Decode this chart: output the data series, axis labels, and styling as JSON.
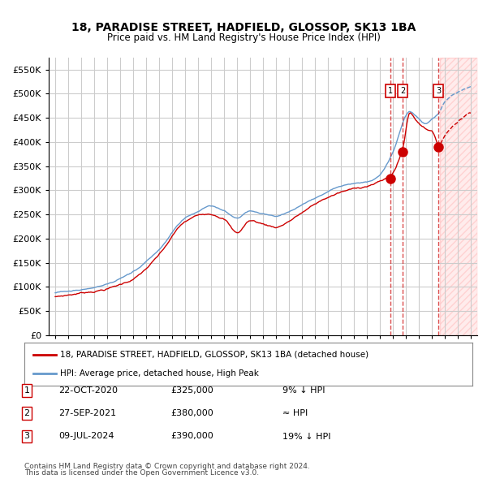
{
  "title": "18, PARADISE STREET, HADFIELD, GLOSSOP, SK13 1BA",
  "subtitle": "Price paid vs. HM Land Registry's House Price Index (HPI)",
  "legend_line1": "18, PARADISE STREET, HADFIELD, GLOSSOP, SK13 1BA (detached house)",
  "legend_line2": "HPI: Average price, detached house, High Peak",
  "footer1": "Contains HM Land Registry data © Crown copyright and database right 2024.",
  "footer2": "This data is licensed under the Open Government Licence v3.0.",
  "transactions": [
    {
      "num": 1,
      "date": "22-OCT-2020",
      "price": 325000,
      "hpi_rel": "9% ↓ HPI",
      "x_year": 2020.8
    },
    {
      "num": 2,
      "date": "27-SEP-2021",
      "price": 380000,
      "hpi_rel": "≈ HPI",
      "x_year": 2021.75
    },
    {
      "num": 3,
      "date": "09-JUL-2024",
      "price": 390000,
      "hpi_rel": "19% ↓ HPI",
      "x_year": 2024.52
    }
  ],
  "hpi_color": "#6699cc",
  "price_color": "#cc0000",
  "background_color": "#ffffff",
  "grid_color": "#cccccc",
  "hatch_color": "#ffcccc",
  "ylim": [
    0,
    575000
  ],
  "xlim_start": 1994.5,
  "xlim_end": 2027.5,
  "yticks": [
    0,
    50000,
    100000,
    150000,
    200000,
    250000,
    300000,
    350000,
    400000,
    450000,
    500000,
    550000
  ],
  "ytick_labels": [
    "£0",
    "£50K",
    "£100K",
    "£150K",
    "£200K",
    "£250K",
    "£300K",
    "£350K",
    "£400K",
    "£450K",
    "£500K",
    "£550K"
  ],
  "xticks": [
    1995,
    1996,
    1997,
    1998,
    1999,
    2000,
    2001,
    2002,
    2003,
    2004,
    2005,
    2006,
    2007,
    2008,
    2009,
    2010,
    2011,
    2012,
    2013,
    2014,
    2015,
    2016,
    2017,
    2018,
    2019,
    2020,
    2021,
    2022,
    2023,
    2024,
    2025,
    2026,
    2027
  ]
}
